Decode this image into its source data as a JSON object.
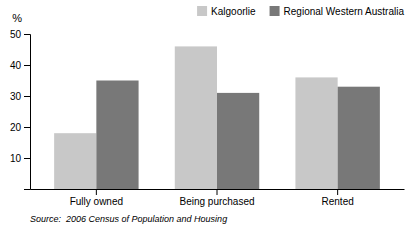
{
  "chart_data": {
    "type": "bar",
    "categories": [
      "Fully owned",
      "Being purchased",
      "Rented"
    ],
    "series": [
      {
        "name": "Kalgoorlie",
        "color": "#c8c8c8",
        "values": [
          18,
          46,
          36
        ]
      },
      {
        "name": "Regional Western Australia",
        "color": "#787878",
        "values": [
          35,
          31,
          33
        ]
      }
    ],
    "y_label": "%",
    "ylim": [
      0,
      50
    ],
    "yticks": [
      10,
      20,
      30,
      40,
      50
    ],
    "grid": false,
    "legend": "upper right",
    "annotations": [
      "Source:  2006 Census of Population and Housing"
    ]
  }
}
